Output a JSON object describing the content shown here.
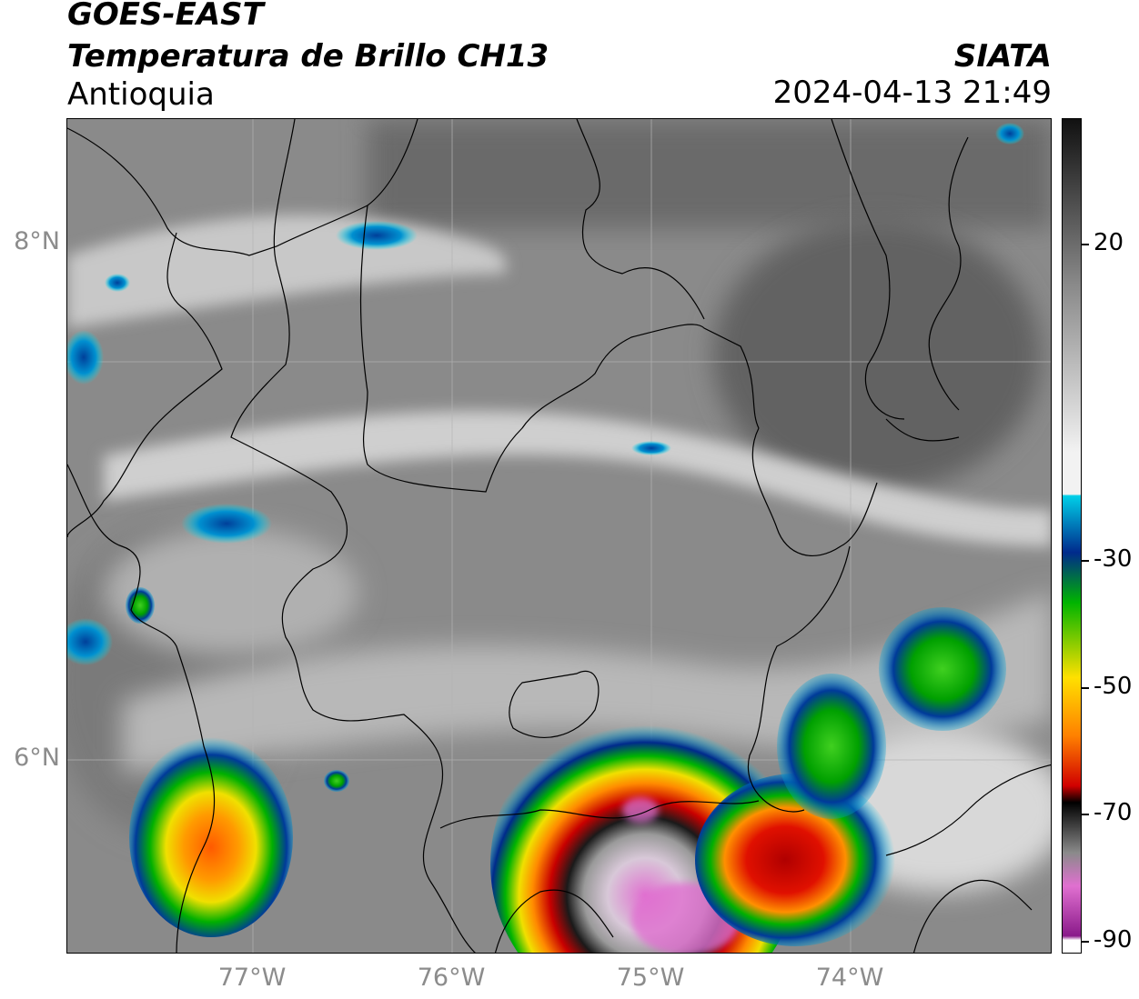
{
  "header": {
    "satellite": "GOES-EAST",
    "product": "Temperatura de Brillo CH13",
    "region": "Antioquia",
    "organization": "SIATA",
    "timestamp": "2024-04-13 21:49"
  },
  "map": {
    "latitude_labels": [
      "8°N",
      "6°N"
    ],
    "longitude_labels": [
      "77°W",
      "76°W",
      "75°W",
      "74°W"
    ],
    "gridline_color": "#b4b4b4",
    "border_color": "#000000",
    "cloud_background_color": "#8a8a8a"
  },
  "colorbar": {
    "labels": [
      "20",
      "-30",
      "-50",
      "-70",
      "-90"
    ],
    "colors": {
      "warm_dark": "#111111",
      "mid_gray": "#8a8a8a",
      "light": "#f2f2f2",
      "cyan": "#00cfe8",
      "blue": "#002a8c",
      "green": "#00b400",
      "yellow": "#ffe000",
      "orange": "#ff8000",
      "red": "#d00000",
      "black": "#000000",
      "pink": "#e070d0",
      "purple": "#8a1a8a"
    }
  }
}
